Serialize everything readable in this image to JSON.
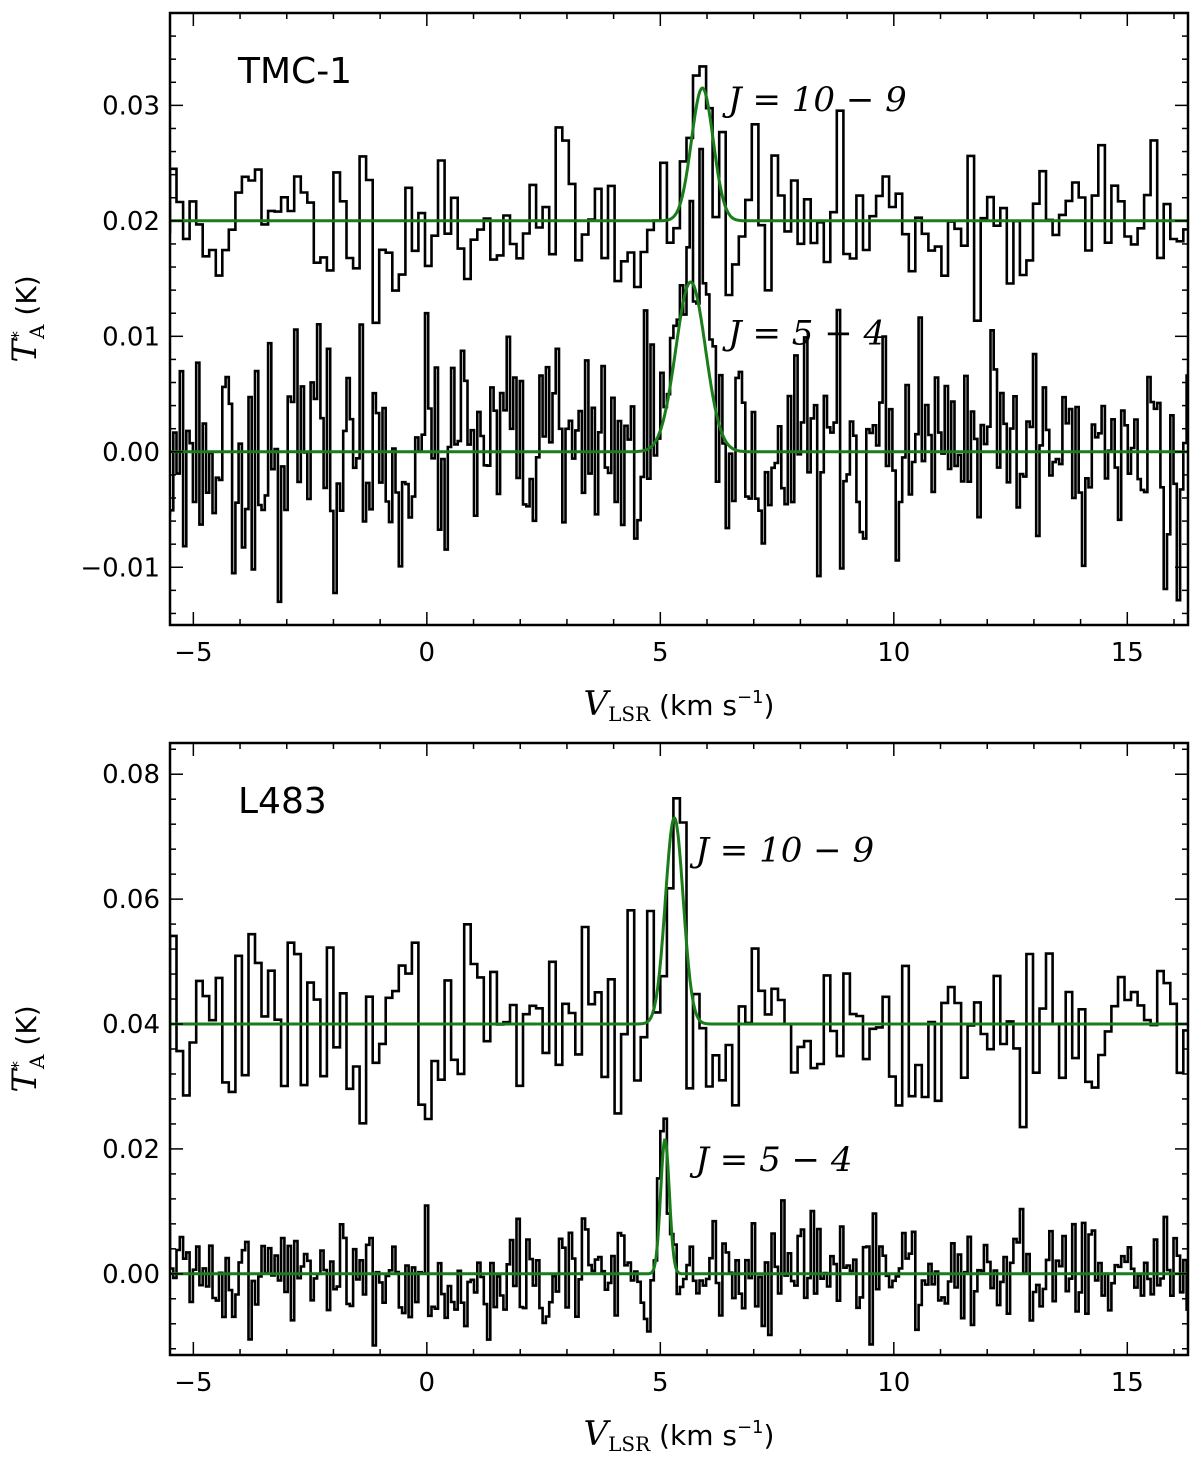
{
  "chart_data": [
    {
      "type": "line",
      "title": "TMC-1",
      "xlabel": "V_LSR (km s^-1)",
      "ylabel": "T_A^* (K)",
      "xlim": [
        -5.5,
        16.3
      ],
      "ylim": [
        -0.015,
        0.038
      ],
      "xticks": [
        -5,
        0,
        5,
        10,
        15
      ],
      "yticks": [
        -0.01,
        0.0,
        0.01,
        0.02,
        0.03
      ],
      "ytick_labels": [
        "−0.01",
        "0.00",
        "0.01",
        "0.02",
        "0.03"
      ],
      "grid": false,
      "series": [
        {
          "name": "J=10−9",
          "kind": "spectrum",
          "offset": 0.02,
          "step": 0.14,
          "noise": 0.0035,
          "line_center": 5.9,
          "line_peak": 0.0115,
          "fwhm": 0.55,
          "seed": 11
        },
        {
          "name": "J=5−4",
          "kind": "spectrum",
          "offset": 0.0,
          "step": 0.07,
          "noise": 0.0048,
          "line_center": 5.65,
          "line_peak": 0.0147,
          "fwhm": 0.75,
          "seed": 23
        }
      ],
      "annotations": [
        {
          "text": "J = 10 − 9",
          "x": 6.45,
          "y": 0.0295
        },
        {
          "text": "J = 5 − 4",
          "x": 6.45,
          "y": 0.0093
        }
      ]
    },
    {
      "type": "line",
      "title": "L483",
      "xlabel": "V_LSR (km s^-1)",
      "ylabel": "T_A^* (K)",
      "xlim": [
        -5.5,
        16.3
      ],
      "ylim": [
        -0.013,
        0.085
      ],
      "xticks": [
        -5,
        0,
        5,
        10,
        15
      ],
      "yticks": [
        0.0,
        0.02,
        0.04,
        0.06,
        0.08
      ],
      "ytick_labels": [
        "0.00",
        "0.02",
        "0.04",
        "0.06",
        "0.08"
      ],
      "grid": false,
      "series": [
        {
          "name": "J=10−9",
          "kind": "spectrum",
          "offset": 0.04,
          "step": 0.14,
          "noise": 0.0075,
          "line_center": 5.3,
          "line_peak": 0.033,
          "fwhm": 0.45,
          "seed": 37
        },
        {
          "name": "J=5−4",
          "kind": "spectrum",
          "offset": 0.0,
          "step": 0.07,
          "noise": 0.0045,
          "line_center": 5.1,
          "line_peak": 0.0215,
          "fwhm": 0.22,
          "seed": 41
        }
      ],
      "annotations": [
        {
          "text": "J = 10 − 9",
          "x": 5.75,
          "y": 0.066
        },
        {
          "text": "J = 5 − 4",
          "x": 5.75,
          "y": 0.0165
        }
      ]
    }
  ],
  "colors": {
    "spectrum": "#000000",
    "fit": "#1a7d1a"
  }
}
